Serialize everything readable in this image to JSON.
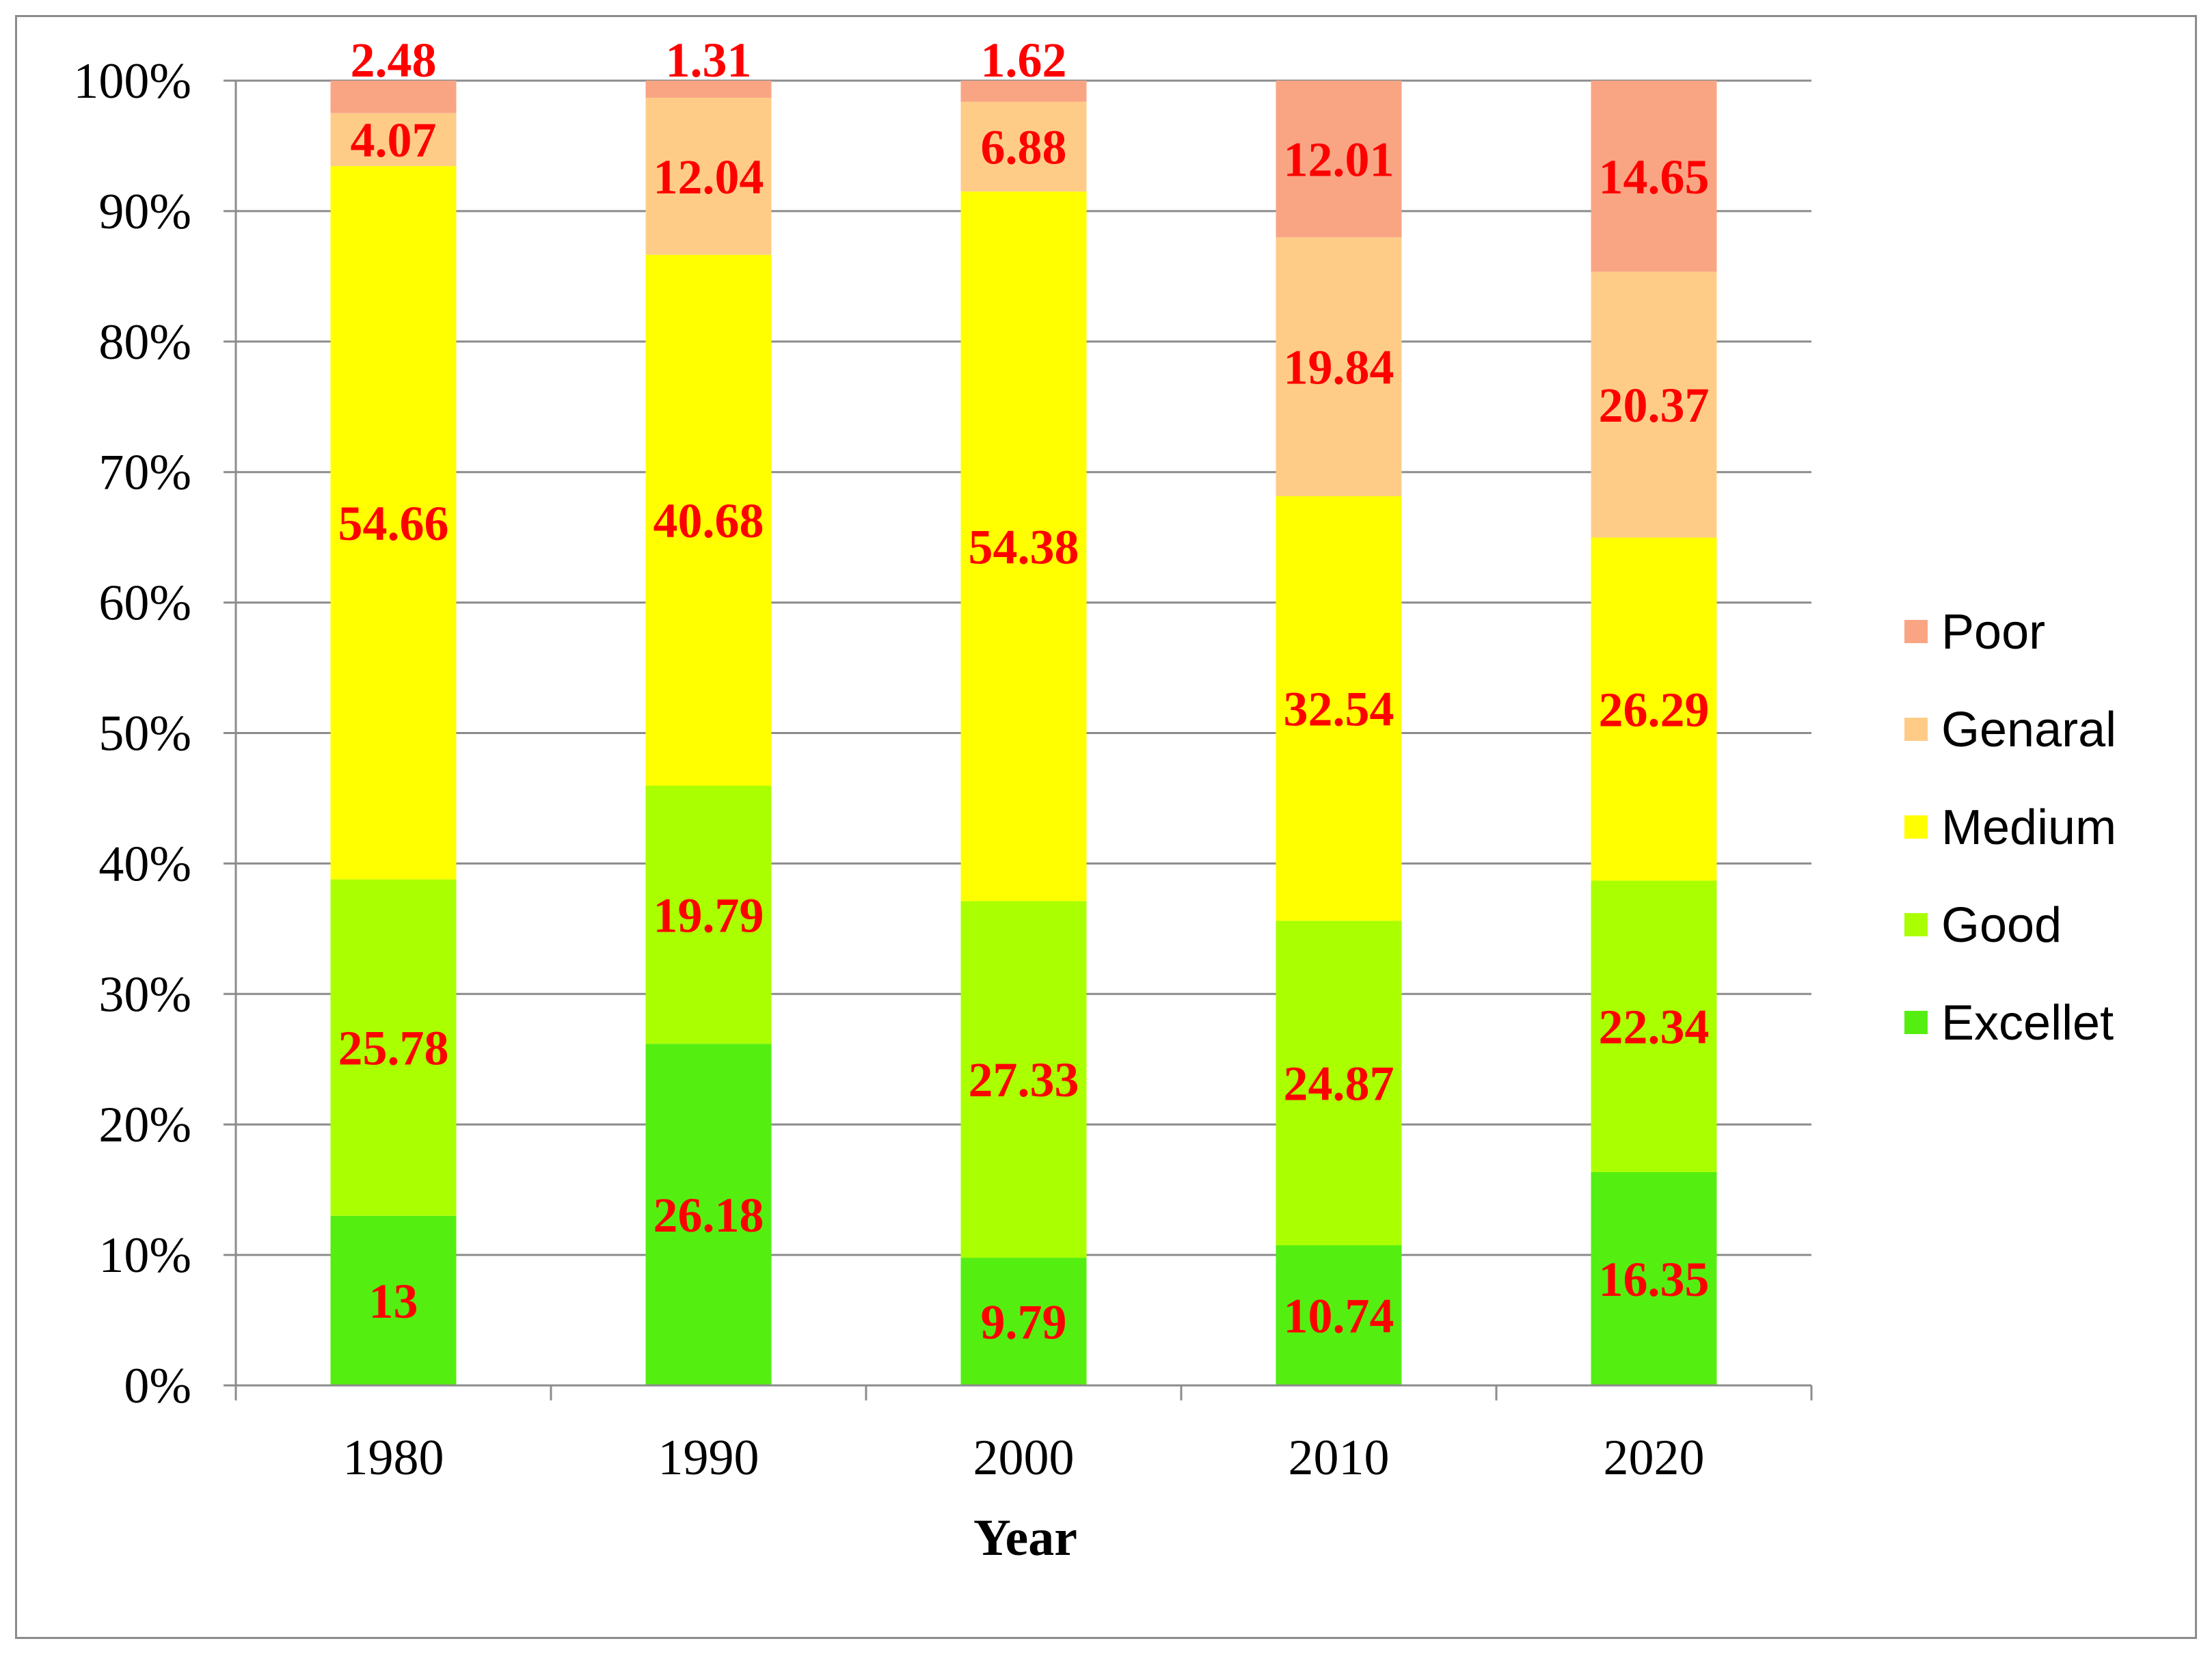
{
  "chart_data": {
    "type": "bar",
    "stacked": true,
    "normalized": true,
    "title": "",
    "xlabel": "Year",
    "ylabel": "",
    "ylim": [
      0,
      100
    ],
    "yticks": [
      "0%",
      "10%",
      "20%",
      "30%",
      "40%",
      "50%",
      "60%",
      "70%",
      "80%",
      "90%",
      "100%"
    ],
    "grid": true,
    "legend_position": "right",
    "categories": [
      "1980",
      "1990",
      "2000",
      "2010",
      "2020"
    ],
    "series": [
      {
        "name": "Excellet",
        "color": "#55ee11",
        "values": [
          13,
          26.18,
          9.79,
          10.74,
          16.35
        ],
        "labels": [
          "13",
          "26.18",
          "9.79",
          "10.74",
          "16.35"
        ]
      },
      {
        "name": "Good",
        "color": "#aaff00",
        "values": [
          25.78,
          19.79,
          27.33,
          24.87,
          22.34
        ],
        "labels": [
          "25.78",
          "19.79",
          "27.33",
          "24.87",
          "22.34"
        ]
      },
      {
        "name": "Medium",
        "color": "#ffff00",
        "values": [
          54.66,
          40.68,
          54.38,
          32.54,
          26.29
        ],
        "labels": [
          "54.66",
          "40.68",
          "54.38",
          "32.54",
          "26.29"
        ]
      },
      {
        "name": "Genaral",
        "color": "#ffcc88",
        "values": [
          4.07,
          12.04,
          6.88,
          19.84,
          20.37
        ],
        "labels": [
          "4.07",
          "12.04",
          "6.88",
          "19.84",
          "20.37"
        ]
      },
      {
        "name": "Poor",
        "color": "#f9a584",
        "values": [
          2.48,
          1.31,
          1.62,
          12.01,
          14.65
        ],
        "labels": [
          "2.48",
          "1.31",
          "1.62",
          "12.01",
          "14.65"
        ]
      }
    ],
    "legend_order": [
      "Poor",
      "Genaral",
      "Medium",
      "Good",
      "Excellet"
    ],
    "label_color": "#ff0000"
  }
}
